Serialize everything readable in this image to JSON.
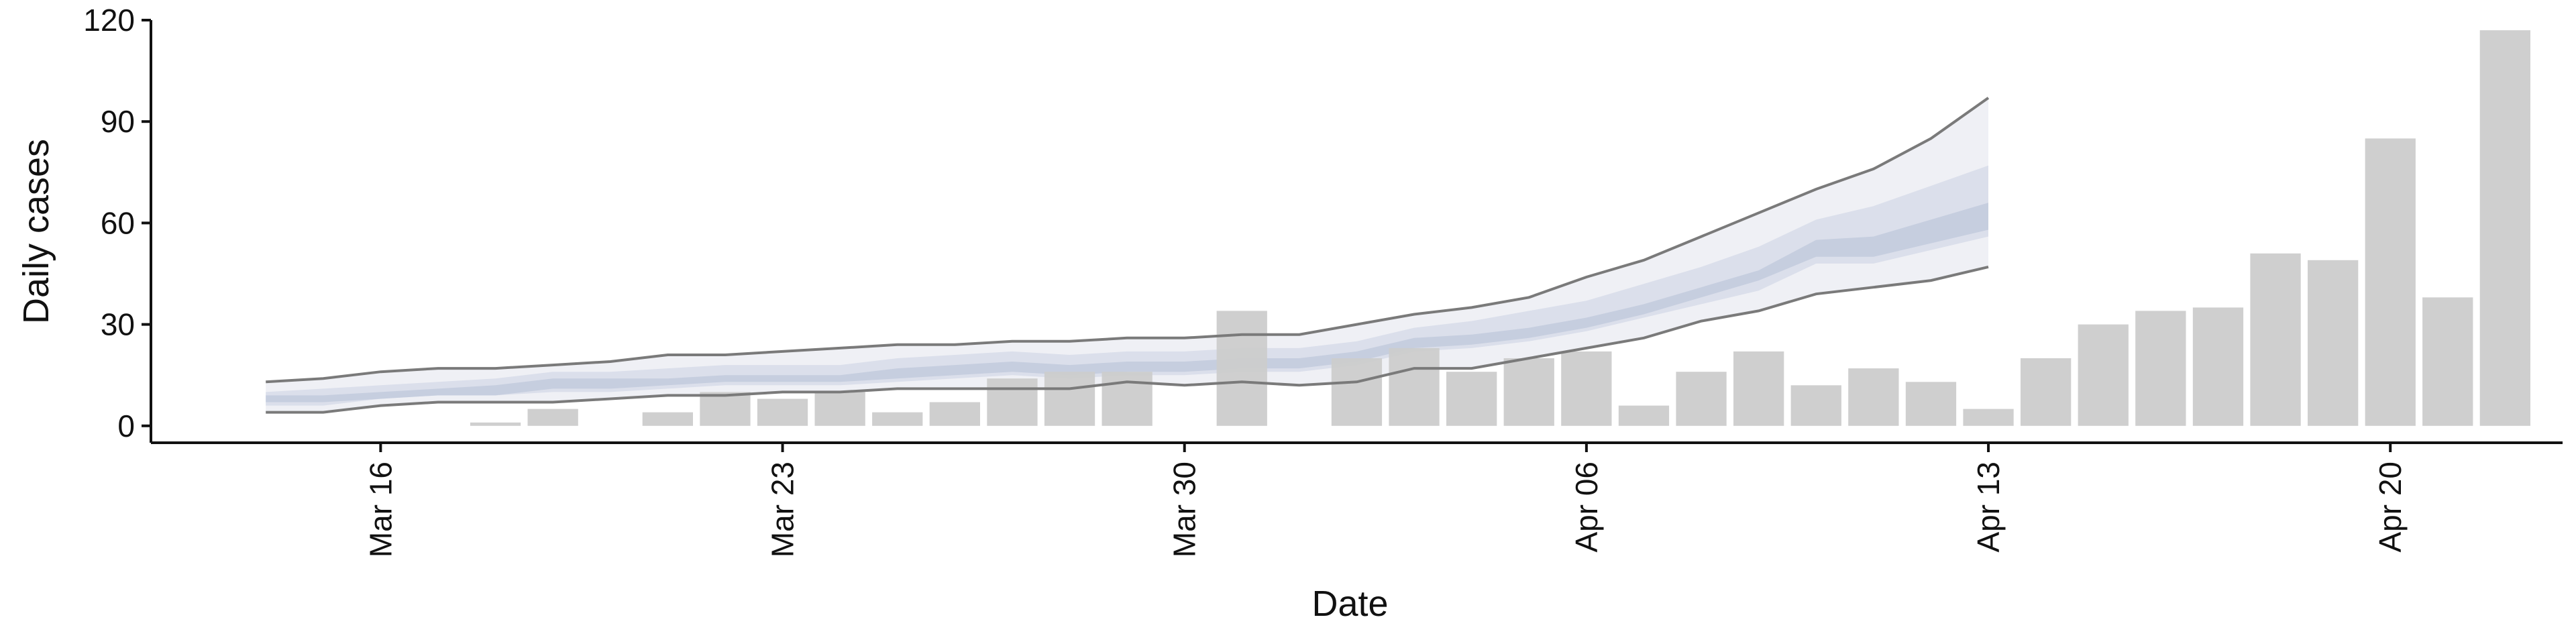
{
  "chart_data": {
    "type": "bar",
    "xlabel": "Date",
    "ylabel": "Daily cases",
    "ylim": [
      -5,
      120
    ],
    "yticks": [
      0,
      30,
      60,
      90,
      120
    ],
    "xlim": [
      "2020-03-12",
      "2020-04-23"
    ],
    "xticks": [
      {
        "date": "2020-03-16",
        "label": "Mar 16"
      },
      {
        "date": "2020-03-23",
        "label": "Mar 23"
      },
      {
        "date": "2020-03-30",
        "label": "Mar 30"
      },
      {
        "date": "2020-04-06",
        "label": "Apr 06"
      },
      {
        "date": "2020-04-13",
        "label": "Apr 13"
      },
      {
        "date": "2020-04-20",
        "label": "Apr 20"
      }
    ],
    "grid": false,
    "colors": {
      "bars": "#cccccc",
      "band_outer": "#e9ebf2",
      "band_mid": "#d6dbe8",
      "band_inner": "#c1c9dc",
      "bound_lines": "#7a7a7a"
    },
    "series": [
      {
        "type": "bar",
        "x": [
          "2020-03-16",
          "2020-03-17",
          "2020-03-18",
          "2020-03-19",
          "2020-03-20",
          "2020-03-21",
          "2020-03-22",
          "2020-03-23",
          "2020-03-24",
          "2020-03-25",
          "2020-03-26",
          "2020-03-27",
          "2020-03-28",
          "2020-03-29",
          "2020-03-30",
          "2020-03-31",
          "2020-04-01",
          "2020-04-02",
          "2020-04-03",
          "2020-04-04",
          "2020-04-05",
          "2020-04-06",
          "2020-04-07",
          "2020-04-08",
          "2020-04-09",
          "2020-04-10",
          "2020-04-11",
          "2020-04-12",
          "2020-04-13",
          "2020-04-14",
          "2020-04-15",
          "2020-04-16",
          "2020-04-17",
          "2020-04-18",
          "2020-04-19",
          "2020-04-20",
          "2020-04-21",
          "2020-04-22"
        ],
        "values": [
          0,
          0,
          1,
          5,
          0,
          4,
          10,
          8,
          10,
          4,
          7,
          14,
          16,
          16,
          0,
          34,
          0,
          20,
          23,
          16,
          20,
          22,
          6,
          16,
          22,
          12,
          17,
          13,
          5,
          20,
          30,
          34,
          35,
          51,
          49,
          85,
          38,
          117
        ]
      },
      {
        "type": "area-band",
        "x": [
          "2020-03-14",
          "2020-03-15",
          "2020-03-16",
          "2020-03-17",
          "2020-03-18",
          "2020-03-19",
          "2020-03-20",
          "2020-03-21",
          "2020-03-22",
          "2020-03-23",
          "2020-03-24",
          "2020-03-25",
          "2020-03-26",
          "2020-03-27",
          "2020-03-28",
          "2020-03-29",
          "2020-03-30",
          "2020-03-31",
          "2020-04-01",
          "2020-04-02",
          "2020-04-03",
          "2020-04-04",
          "2020-04-05",
          "2020-04-06",
          "2020-04-07",
          "2020-04-08",
          "2020-04-09",
          "2020-04-10",
          "2020-04-11",
          "2020-04-12",
          "2020-04-13"
        ],
        "outer_upper": [
          13,
          14,
          16,
          17,
          17,
          18,
          19,
          21,
          21,
          22,
          23,
          24,
          24,
          25,
          25,
          26,
          26,
          27,
          27,
          30,
          33,
          35,
          38,
          44,
          49,
          56,
          63,
          70,
          76,
          85,
          97
        ],
        "outer_lower": [
          4,
          4,
          6,
          7,
          7,
          7,
          8,
          9,
          9,
          10,
          10,
          11,
          11,
          11,
          11,
          13,
          12,
          13,
          12,
          13,
          17,
          17,
          20,
          23,
          26,
          31,
          34,
          39,
          41,
          43,
          47
        ],
        "mid_upper": [
          10,
          11,
          12,
          13,
          14,
          16,
          16,
          17,
          18,
          18,
          18,
          20,
          21,
          22,
          21,
          22,
          22,
          23,
          23,
          25,
          29,
          31,
          34,
          37,
          42,
          47,
          53,
          61,
          65,
          71,
          77
        ],
        "mid_lower": [
          6,
          6,
          8,
          9,
          9,
          10,
          10,
          11,
          12,
          12,
          12,
          13,
          14,
          15,
          14,
          15,
          15,
          16,
          16,
          18,
          22,
          23,
          25,
          28,
          32,
          36,
          40,
          48,
          48,
          52,
          56
        ],
        "inner_upper": [
          9,
          9,
          10,
          11,
          12,
          14,
          14,
          14,
          15,
          15,
          15,
          17,
          18,
          19,
          18,
          19,
          19,
          20,
          20,
          22,
          26,
          27,
          29,
          32,
          36,
          41,
          46,
          55,
          56,
          61,
          66
        ],
        "inner_lower": [
          7,
          7,
          8,
          9,
          9,
          11,
          11,
          12,
          13,
          13,
          13,
          14,
          15,
          16,
          15,
          16,
          16,
          17,
          17,
          19,
          23,
          24,
          26,
          29,
          33,
          38,
          43,
          50,
          50,
          54,
          58
        ]
      }
    ]
  }
}
